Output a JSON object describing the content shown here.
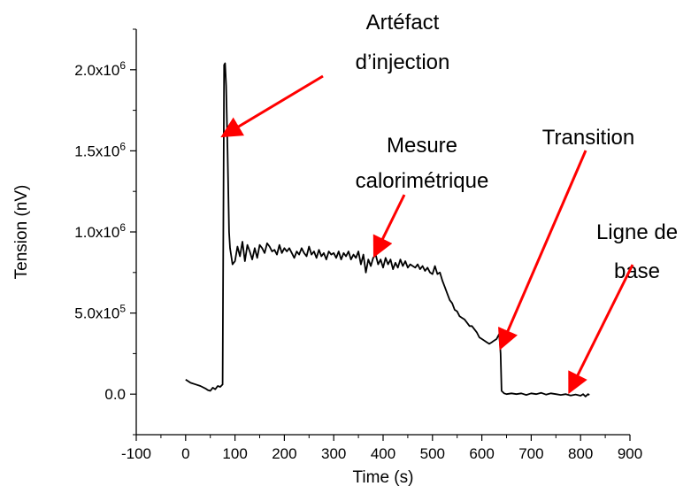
{
  "chart_data": {
    "type": "line",
    "title": "",
    "xlabel": "Time (s)",
    "ylabel": "Tension (nV)",
    "xlim": [
      -100,
      900
    ],
    "ylim": [
      -250000,
      2250000
    ],
    "x_ticks": [
      -100,
      0,
      100,
      200,
      300,
      400,
      500,
      600,
      700,
      800,
      900
    ],
    "y_ticks": [
      {
        "value": 0,
        "base": "0.0",
        "exp": ""
      },
      {
        "value": 500000,
        "base": "5.0x10",
        "exp": "5"
      },
      {
        "value": 1000000,
        "base": "1.0x10",
        "exp": "6"
      },
      {
        "value": 1500000,
        "base": "1.5x10",
        "exp": "6"
      },
      {
        "value": 2000000,
        "base": "2.0x10",
        "exp": "6"
      }
    ],
    "grid": false,
    "series": [
      {
        "color": "#000000",
        "x": [
          0,
          10,
          20,
          30,
          40,
          45,
          50,
          55,
          60,
          65,
          70,
          75,
          78,
          80,
          82,
          85,
          88,
          90,
          95,
          100,
          105,
          110,
          115,
          120,
          125,
          130,
          135,
          140,
          145,
          150,
          155,
          160,
          165,
          170,
          175,
          180,
          185,
          190,
          195,
          200,
          205,
          210,
          215,
          220,
          225,
          230,
          235,
          240,
          245,
          250,
          255,
          260,
          265,
          270,
          275,
          280,
          285,
          290,
          295,
          300,
          305,
          310,
          315,
          320,
          325,
          330,
          335,
          340,
          345,
          350,
          355,
          360,
          365,
          370,
          375,
          380,
          385,
          390,
          395,
          400,
          405,
          410,
          415,
          420,
          425,
          430,
          435,
          440,
          445,
          450,
          455,
          460,
          465,
          470,
          475,
          480,
          485,
          490,
          495,
          500,
          505,
          510,
          515,
          520,
          525,
          530,
          535,
          540,
          545,
          550,
          555,
          560,
          565,
          570,
          575,
          580,
          585,
          590,
          595,
          600,
          605,
          610,
          615,
          620,
          625,
          630,
          635,
          637,
          638,
          640,
          645,
          650,
          660,
          670,
          680,
          690,
          700,
          710,
          720,
          730,
          740,
          750,
          760,
          770,
          780,
          790,
          800,
          805,
          810,
          815,
          818
        ],
        "y": [
          90000,
          70000,
          60000,
          50000,
          35000,
          25000,
          20000,
          40000,
          30000,
          50000,
          45000,
          60000,
          2030000,
          2040000,
          1900000,
          1500000,
          1000000,
          900000,
          800000,
          820000,
          910000,
          850000,
          940000,
          820000,
          920000,
          880000,
          830000,
          900000,
          840000,
          920000,
          900000,
          870000,
          930000,
          910000,
          880000,
          890000,
          860000,
          920000,
          870000,
          900000,
          880000,
          900000,
          870000,
          840000,
          880000,
          860000,
          900000,
          870000,
          850000,
          910000,
          860000,
          880000,
          840000,
          890000,
          850000,
          870000,
          830000,
          880000,
          860000,
          870000,
          840000,
          880000,
          830000,
          870000,
          850000,
          880000,
          830000,
          860000,
          840000,
          880000,
          800000,
          860000,
          750000,
          830000,
          790000,
          840000,
          860000,
          800000,
          830000,
          780000,
          840000,
          800000,
          830000,
          770000,
          810000,
          780000,
          830000,
          790000,
          820000,
          780000,
          800000,
          790000,
          780000,
          800000,
          770000,
          790000,
          760000,
          780000,
          750000,
          740000,
          790000,
          740000,
          750000,
          700000,
          660000,
          620000,
          580000,
          560000,
          520000,
          510000,
          480000,
          470000,
          460000,
          440000,
          420000,
          420000,
          400000,
          380000,
          350000,
          340000,
          330000,
          320000,
          310000,
          320000,
          330000,
          340000,
          370000,
          300000,
          250000,
          20000,
          5000,
          0,
          5000,
          0,
          5000,
          -5000,
          5000,
          0,
          8000,
          -3000,
          5000,
          0,
          -5000,
          0,
          -8000,
          -2000,
          -10000,
          0,
          -15000,
          0,
          -5000
        ]
      }
    ],
    "annotations": [
      {
        "lines": [
          "Artéfact",
          "d’injection"
        ],
        "arrow_to": [
          80,
          1600000
        ]
      },
      {
        "lines": [
          "Mesure",
          "calorimétrique"
        ],
        "arrow_to": [
          385,
          870000
        ]
      },
      {
        "lines": [
          "Transition"
        ],
        "arrow_to": [
          640,
          300000
        ]
      },
      {
        "lines": [
          "Ligne de",
          "base"
        ],
        "arrow_to": [
          780,
          30000
        ]
      }
    ]
  }
}
